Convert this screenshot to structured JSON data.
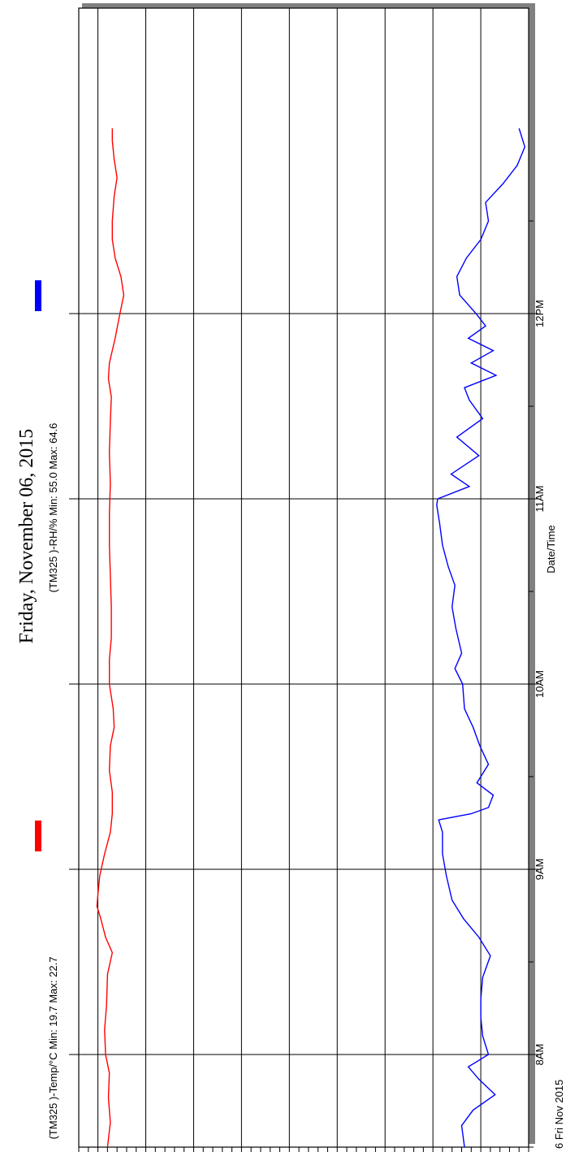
{
  "chart_data": {
    "type": "line",
    "title": "Friday, November 06, 2015",
    "xlabel": "Date/Time",
    "start_label": "6 Fri Nov 2015",
    "x_ticks": [
      "8AM",
      "9AM",
      "10AM",
      "11AM",
      "12PM"
    ],
    "x_range": [
      "07:30",
      "13:00"
    ],
    "ylabel": "",
    "ylim": [
      18,
      65
    ],
    "y_ticks": [
      20,
      25,
      30,
      35,
      40,
      45,
      50,
      55,
      60
    ],
    "grid": true,
    "legend": [
      {
        "text": "(TM325     )-Temp/°C Min: 19.7 Max: 22.7",
        "color": "#ff0000"
      },
      {
        "text": "(TM325     )-RH/% Min: 55.0 Max: 64.6",
        "color": "#0000ff"
      }
    ],
    "series": [
      {
        "name": "(TM325 )-RH/%",
        "color": "#0000ff",
        "points": [
          [
            "07:30",
            58.3
          ],
          [
            "07:37",
            58.0
          ],
          [
            "07:42",
            59.2
          ],
          [
            "07:47",
            61.5
          ],
          [
            "07:52",
            59.8
          ],
          [
            "07:56",
            58.7
          ],
          [
            "08:00",
            60.8
          ],
          [
            "08:06",
            60.2
          ],
          [
            "08:12",
            60.0
          ],
          [
            "08:18",
            60.0
          ],
          [
            "08:25",
            60.2
          ],
          [
            "08:32",
            61.0
          ],
          [
            "08:38",
            59.8
          ],
          [
            "08:44",
            58.2
          ],
          [
            "08:50",
            57.0
          ],
          [
            "08:58",
            56.4
          ],
          [
            "09:05",
            56.0
          ],
          [
            "09:12",
            56.0
          ],
          [
            "09:16",
            55.6
          ],
          [
            "09:18",
            59.0
          ],
          [
            "09:20",
            60.8
          ],
          [
            "09:24",
            61.3
          ],
          [
            "09:28",
            59.6
          ],
          [
            "09:34",
            60.8
          ],
          [
            "09:40",
            59.9
          ],
          [
            "09:46",
            59.2
          ],
          [
            "09:52",
            58.3
          ],
          [
            "10:00",
            58.1
          ],
          [
            "10:05",
            57.3
          ],
          [
            "10:10",
            58.0
          ],
          [
            "10:18",
            57.4
          ],
          [
            "10:25",
            57.0
          ],
          [
            "10:32",
            57.3
          ],
          [
            "10:38",
            56.6
          ],
          [
            "10:45",
            56.0
          ],
          [
            "10:52",
            55.7
          ],
          [
            "10:58",
            55.4
          ],
          [
            "11:00",
            55.5
          ],
          [
            "11:04",
            58.8
          ],
          [
            "11:08",
            56.9
          ],
          [
            "11:14",
            59.8
          ],
          [
            "11:20",
            57.5
          ],
          [
            "11:26",
            60.2
          ],
          [
            "11:32",
            58.8
          ],
          [
            "11:36",
            58.3
          ],
          [
            "11:40",
            61.6
          ],
          [
            "11:44",
            59.0
          ],
          [
            "11:48",
            61.3
          ],
          [
            "11:52",
            58.7
          ],
          [
            "11:56",
            60.5
          ],
          [
            "12:00",
            59.5
          ],
          [
            "12:06",
            57.8
          ],
          [
            "12:12",
            57.5
          ],
          [
            "12:18",
            58.5
          ],
          [
            "12:24",
            60.0
          ],
          [
            "12:30",
            60.8
          ],
          [
            "12:36",
            60.5
          ],
          [
            "12:42",
            62.3
          ],
          [
            "12:48",
            63.8
          ],
          [
            "12:54",
            64.6
          ],
          [
            "13:00",
            64.0
          ]
        ]
      },
      {
        "name": "(TM325 )-Temp/°C",
        "color": "#ff0000",
        "points": [
          [
            "07:30",
            21.0
          ],
          [
            "07:38",
            21.3
          ],
          [
            "07:46",
            21.1
          ],
          [
            "07:54",
            21.2
          ],
          [
            "08:00",
            20.8
          ],
          [
            "08:08",
            20.7
          ],
          [
            "08:16",
            20.9
          ],
          [
            "08:26",
            21.0
          ],
          [
            "08:33",
            21.5
          ],
          [
            "08:38",
            20.8
          ],
          [
            "08:44",
            20.3
          ],
          [
            "08:48",
            19.9
          ],
          [
            "08:52",
            20.0
          ],
          [
            "08:58",
            20.2
          ],
          [
            "09:05",
            20.7
          ],
          [
            "09:12",
            21.3
          ],
          [
            "09:18",
            21.5
          ],
          [
            "09:25",
            21.5
          ],
          [
            "09:32",
            21.2
          ],
          [
            "09:40",
            21.3
          ],
          [
            "09:46",
            21.7
          ],
          [
            "09:52",
            21.6
          ],
          [
            "10:00",
            21.2
          ],
          [
            "10:08",
            21.2
          ],
          [
            "10:15",
            21.4
          ],
          [
            "10:25",
            21.4
          ],
          [
            "10:35",
            21.3
          ],
          [
            "10:45",
            21.2
          ],
          [
            "10:55",
            21.2
          ],
          [
            "11:05",
            21.3
          ],
          [
            "11:15",
            21.2
          ],
          [
            "11:25",
            21.3
          ],
          [
            "11:33",
            21.4
          ],
          [
            "11:39",
            21.1
          ],
          [
            "11:44",
            21.2
          ],
          [
            "11:52",
            21.8
          ],
          [
            "12:00",
            22.3
          ],
          [
            "12:06",
            22.7
          ],
          [
            "12:12",
            22.4
          ],
          [
            "12:18",
            21.8
          ],
          [
            "12:24",
            21.5
          ],
          [
            "12:30",
            21.5
          ],
          [
            "12:38",
            21.7
          ],
          [
            "12:44",
            22.0
          ],
          [
            "12:50",
            21.7
          ],
          [
            "12:56",
            21.5
          ],
          [
            "13:00",
            21.5
          ]
        ]
      }
    ]
  }
}
